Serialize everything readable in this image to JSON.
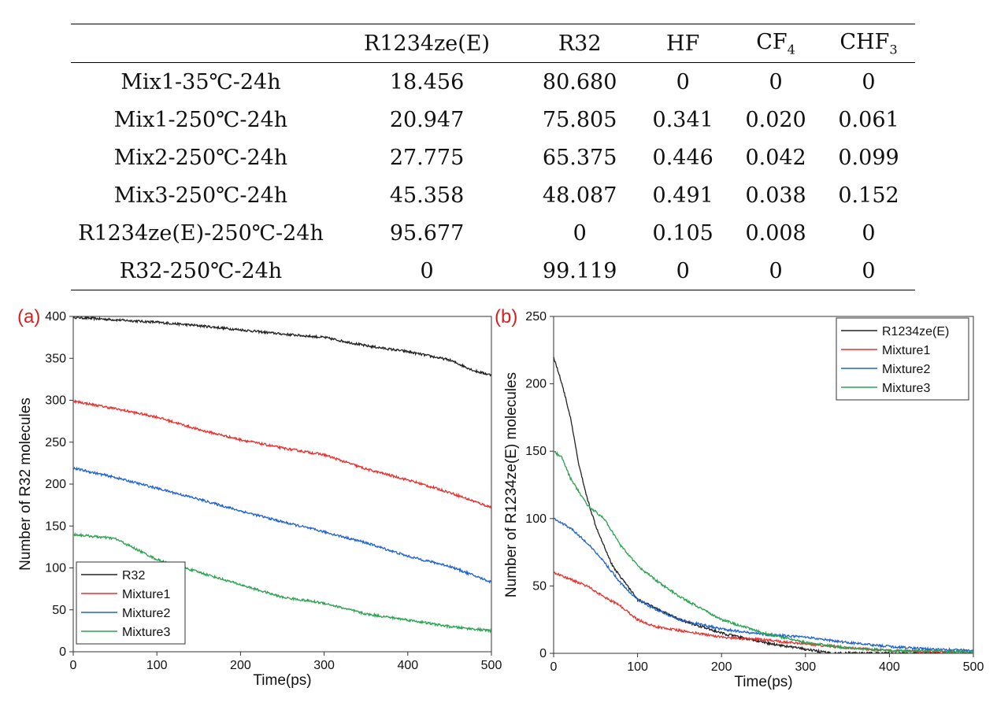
{
  "table": {
    "columns": [
      "",
      "R1234ze(E)",
      "R32",
      "HF",
      "CF4",
      "CHF3"
    ],
    "rows": [
      [
        "Mix1-35℃-24h",
        "18.456",
        "80.680",
        "0",
        "0",
        "0"
      ],
      [
        "Mix1-250℃-24h",
        "20.947",
        "75.805",
        "0.341",
        "0.020",
        "0.061"
      ],
      [
        "Mix2-250℃-24h",
        "27.775",
        "65.375",
        "0.446",
        "0.042",
        "0.099"
      ],
      [
        "Mix3-250℃-24h",
        "45.358",
        "48.087",
        "0.491",
        "0.038",
        "0.152"
      ],
      [
        "R1234ze(E)-250℃-24h",
        "95.677",
        "0",
        "0.105",
        "0.008",
        "0"
      ],
      [
        "R32-250℃-24h",
        "0",
        "99.119",
        "0",
        "0",
        "0"
      ]
    ]
  },
  "colors": {
    "black": "#222222",
    "red": "#e8302e",
    "blue": "#1f62d1",
    "green": "#2aa351",
    "panel_label": "#d42020"
  },
  "chart_data": [
    {
      "type": "line",
      "panel_label": "(a)",
      "title": "",
      "xlabel": "Time(ps)",
      "ylabel": "Number of R32 molecules",
      "xlim": [
        0,
        500
      ],
      "ylim": [
        0,
        400
      ],
      "xticks": [
        "0",
        "100",
        "200",
        "300",
        "400",
        "500"
      ],
      "yticks": [
        "0",
        "50",
        "100",
        "150",
        "200",
        "250",
        "300",
        "350",
        "400"
      ],
      "legend_position": "bottom-left",
      "series": [
        {
          "name": "R32",
          "color": "#222222",
          "x": [
            0,
            50,
            100,
            150,
            200,
            250,
            300,
            350,
            400,
            450,
            480,
            500
          ],
          "y": [
            399,
            396,
            393,
            389,
            384,
            379,
            375,
            365,
            358,
            348,
            335,
            330
          ]
        },
        {
          "name": "Mixture1",
          "color": "#e8302e",
          "x": [
            0,
            50,
            100,
            150,
            200,
            250,
            300,
            350,
            400,
            450,
            500
          ],
          "y": [
            299,
            290,
            280,
            265,
            253,
            243,
            235,
            218,
            205,
            190,
            172
          ]
        },
        {
          "name": "Mixture2",
          "color": "#1f62d1",
          "x": [
            0,
            50,
            100,
            150,
            200,
            250,
            300,
            350,
            400,
            450,
            500
          ],
          "y": [
            219,
            208,
            195,
            182,
            168,
            155,
            143,
            130,
            114,
            102,
            83
          ]
        },
        {
          "name": "Mixture3",
          "color": "#2aa351",
          "x": [
            0,
            50,
            70,
            100,
            150,
            200,
            250,
            300,
            350,
            400,
            450,
            500
          ],
          "y": [
            140,
            135,
            125,
            110,
            95,
            80,
            65,
            58,
            45,
            38,
            30,
            25
          ]
        }
      ]
    },
    {
      "type": "line",
      "panel_label": "(b)",
      "title": "",
      "xlabel": "Time(ps)",
      "ylabel": "Number of R1234ze(E) molecules",
      "xlim": [
        0,
        500
      ],
      "ylim": [
        0,
        250
      ],
      "xticks": [
        "0",
        "100",
        "200",
        "300",
        "400",
        "500"
      ],
      "yticks": [
        "0",
        "50",
        "100",
        "150",
        "200",
        "250"
      ],
      "legend_position": "top-right",
      "series": [
        {
          "name": "R1234ze(E)",
          "color": "#222222",
          "x": [
            0,
            10,
            20,
            30,
            40,
            50,
            70,
            100,
            150,
            200,
            250,
            300,
            330,
            500
          ],
          "y": [
            220,
            200,
            175,
            140,
            115,
            95,
            65,
            40,
            25,
            15,
            8,
            3,
            0,
            0
          ]
        },
        {
          "name": "Mixture1",
          "color": "#e8302e",
          "x": [
            0,
            20,
            40,
            60,
            80,
            100,
            120,
            150,
            200,
            250,
            300,
            350,
            400,
            450,
            500
          ],
          "y": [
            60,
            55,
            50,
            42,
            35,
            25,
            20,
            17,
            12,
            10,
            7,
            4,
            2,
            1,
            0
          ]
        },
        {
          "name": "Mixture2",
          "color": "#1f62d1",
          "x": [
            0,
            20,
            40,
            60,
            80,
            100,
            120,
            150,
            200,
            250,
            300,
            350,
            400,
            450,
            500
          ],
          "y": [
            100,
            93,
            82,
            68,
            52,
            40,
            33,
            25,
            18,
            14,
            12,
            8,
            5,
            3,
            2
          ]
        },
        {
          "name": "Mixture3",
          "color": "#2aa351",
          "x": [
            0,
            10,
            20,
            40,
            60,
            80,
            100,
            120,
            150,
            200,
            250,
            300,
            350,
            400,
            500
          ],
          "y": [
            150,
            145,
            130,
            110,
            100,
            80,
            65,
            55,
            42,
            25,
            15,
            8,
            4,
            2,
            1
          ]
        }
      ]
    }
  ]
}
